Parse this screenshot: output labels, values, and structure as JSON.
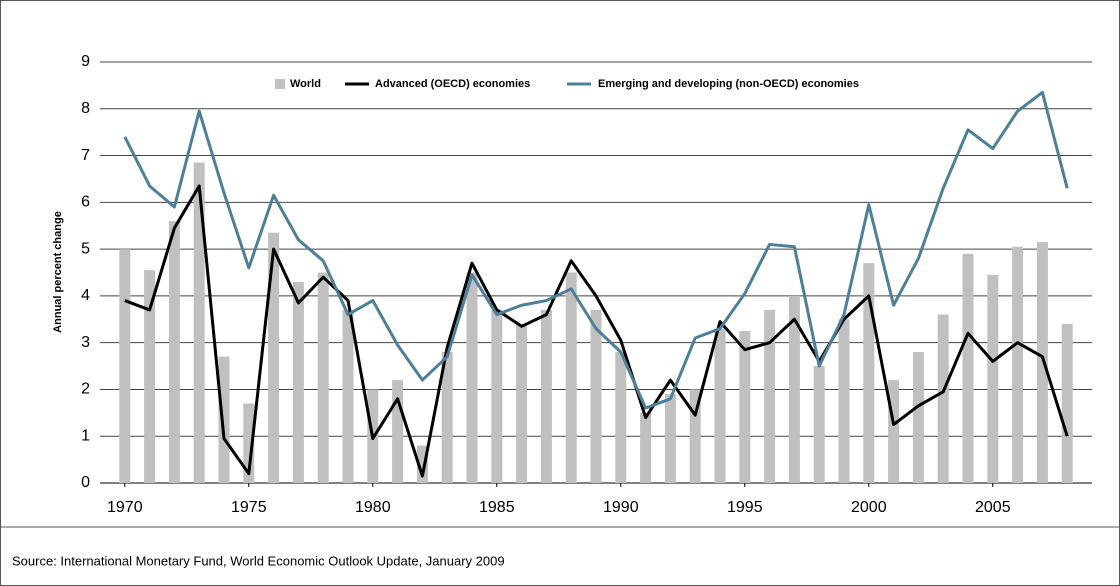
{
  "chart_data": {
    "type": "combo",
    "y_label": "Annual percent change",
    "source": "Source:  International Monetary Fund, World Economic Outlook Update, January 2009",
    "x": [
      1970,
      1971,
      1972,
      1973,
      1974,
      1975,
      1976,
      1977,
      1978,
      1979,
      1980,
      1981,
      1982,
      1983,
      1984,
      1985,
      1986,
      1987,
      1988,
      1989,
      1990,
      1991,
      1992,
      1993,
      1994,
      1995,
      1996,
      1997,
      1998,
      1999,
      2000,
      2001,
      2002,
      2003,
      2004,
      2005,
      2006,
      2007,
      2008
    ],
    "xlim": [
      1969,
      2009
    ],
    "xticks": [
      1970,
      1975,
      1980,
      1985,
      1990,
      1995,
      2000,
      2005
    ],
    "ylim": [
      0,
      9
    ],
    "yticks": [
      0,
      1,
      2,
      3,
      4,
      5,
      6,
      7,
      8,
      9
    ],
    "grid": true,
    "legend": "top",
    "series": [
      {
        "name": "World",
        "type": "bar",
        "color": "#c0c0c0",
        "values": [
          5.0,
          4.55,
          5.6,
          6.85,
          2.7,
          1.7,
          5.35,
          4.3,
          4.5,
          3.7,
          2.0,
          2.2,
          0.8,
          2.8,
          4.5,
          3.7,
          3.4,
          3.7,
          4.5,
          3.7,
          2.8,
          1.5,
          1.9,
          2.0,
          3.3,
          3.25,
          3.7,
          4.0,
          2.5,
          3.5,
          4.7,
          2.2,
          2.8,
          3.6,
          4.9,
          4.45,
          5.05,
          5.15,
          3.4
        ]
      },
      {
        "name": "Advanced (OECD) economies",
        "type": "line",
        "color": "#000000",
        "values": [
          3.9,
          3.7,
          5.45,
          6.35,
          0.95,
          0.2,
          5.0,
          3.85,
          4.4,
          3.9,
          0.95,
          1.8,
          0.15,
          2.9,
          4.7,
          3.7,
          3.35,
          3.6,
          4.75,
          4.0,
          3.05,
          1.4,
          2.2,
          1.45,
          3.45,
          2.85,
          3.0,
          3.5,
          2.6,
          3.5,
          4.0,
          1.25,
          1.65,
          1.95,
          3.2,
          2.6,
          3.0,
          2.7,
          1.0
        ]
      },
      {
        "name": "Emerging and developing (non-OECD) economies",
        "type": "line",
        "color": "#4e7f98",
        "values": [
          7.4,
          6.35,
          5.9,
          7.95,
          6.2,
          4.6,
          6.15,
          5.2,
          4.75,
          3.6,
          3.9,
          2.95,
          2.2,
          2.7,
          4.45,
          3.6,
          3.8,
          3.9,
          4.15,
          3.3,
          2.8,
          1.6,
          1.8,
          3.1,
          3.3,
          4.05,
          5.1,
          5.05,
          2.5,
          3.6,
          5.95,
          3.8,
          4.8,
          6.3,
          7.55,
          7.15,
          7.95,
          8.35,
          6.3
        ]
      }
    ]
  }
}
